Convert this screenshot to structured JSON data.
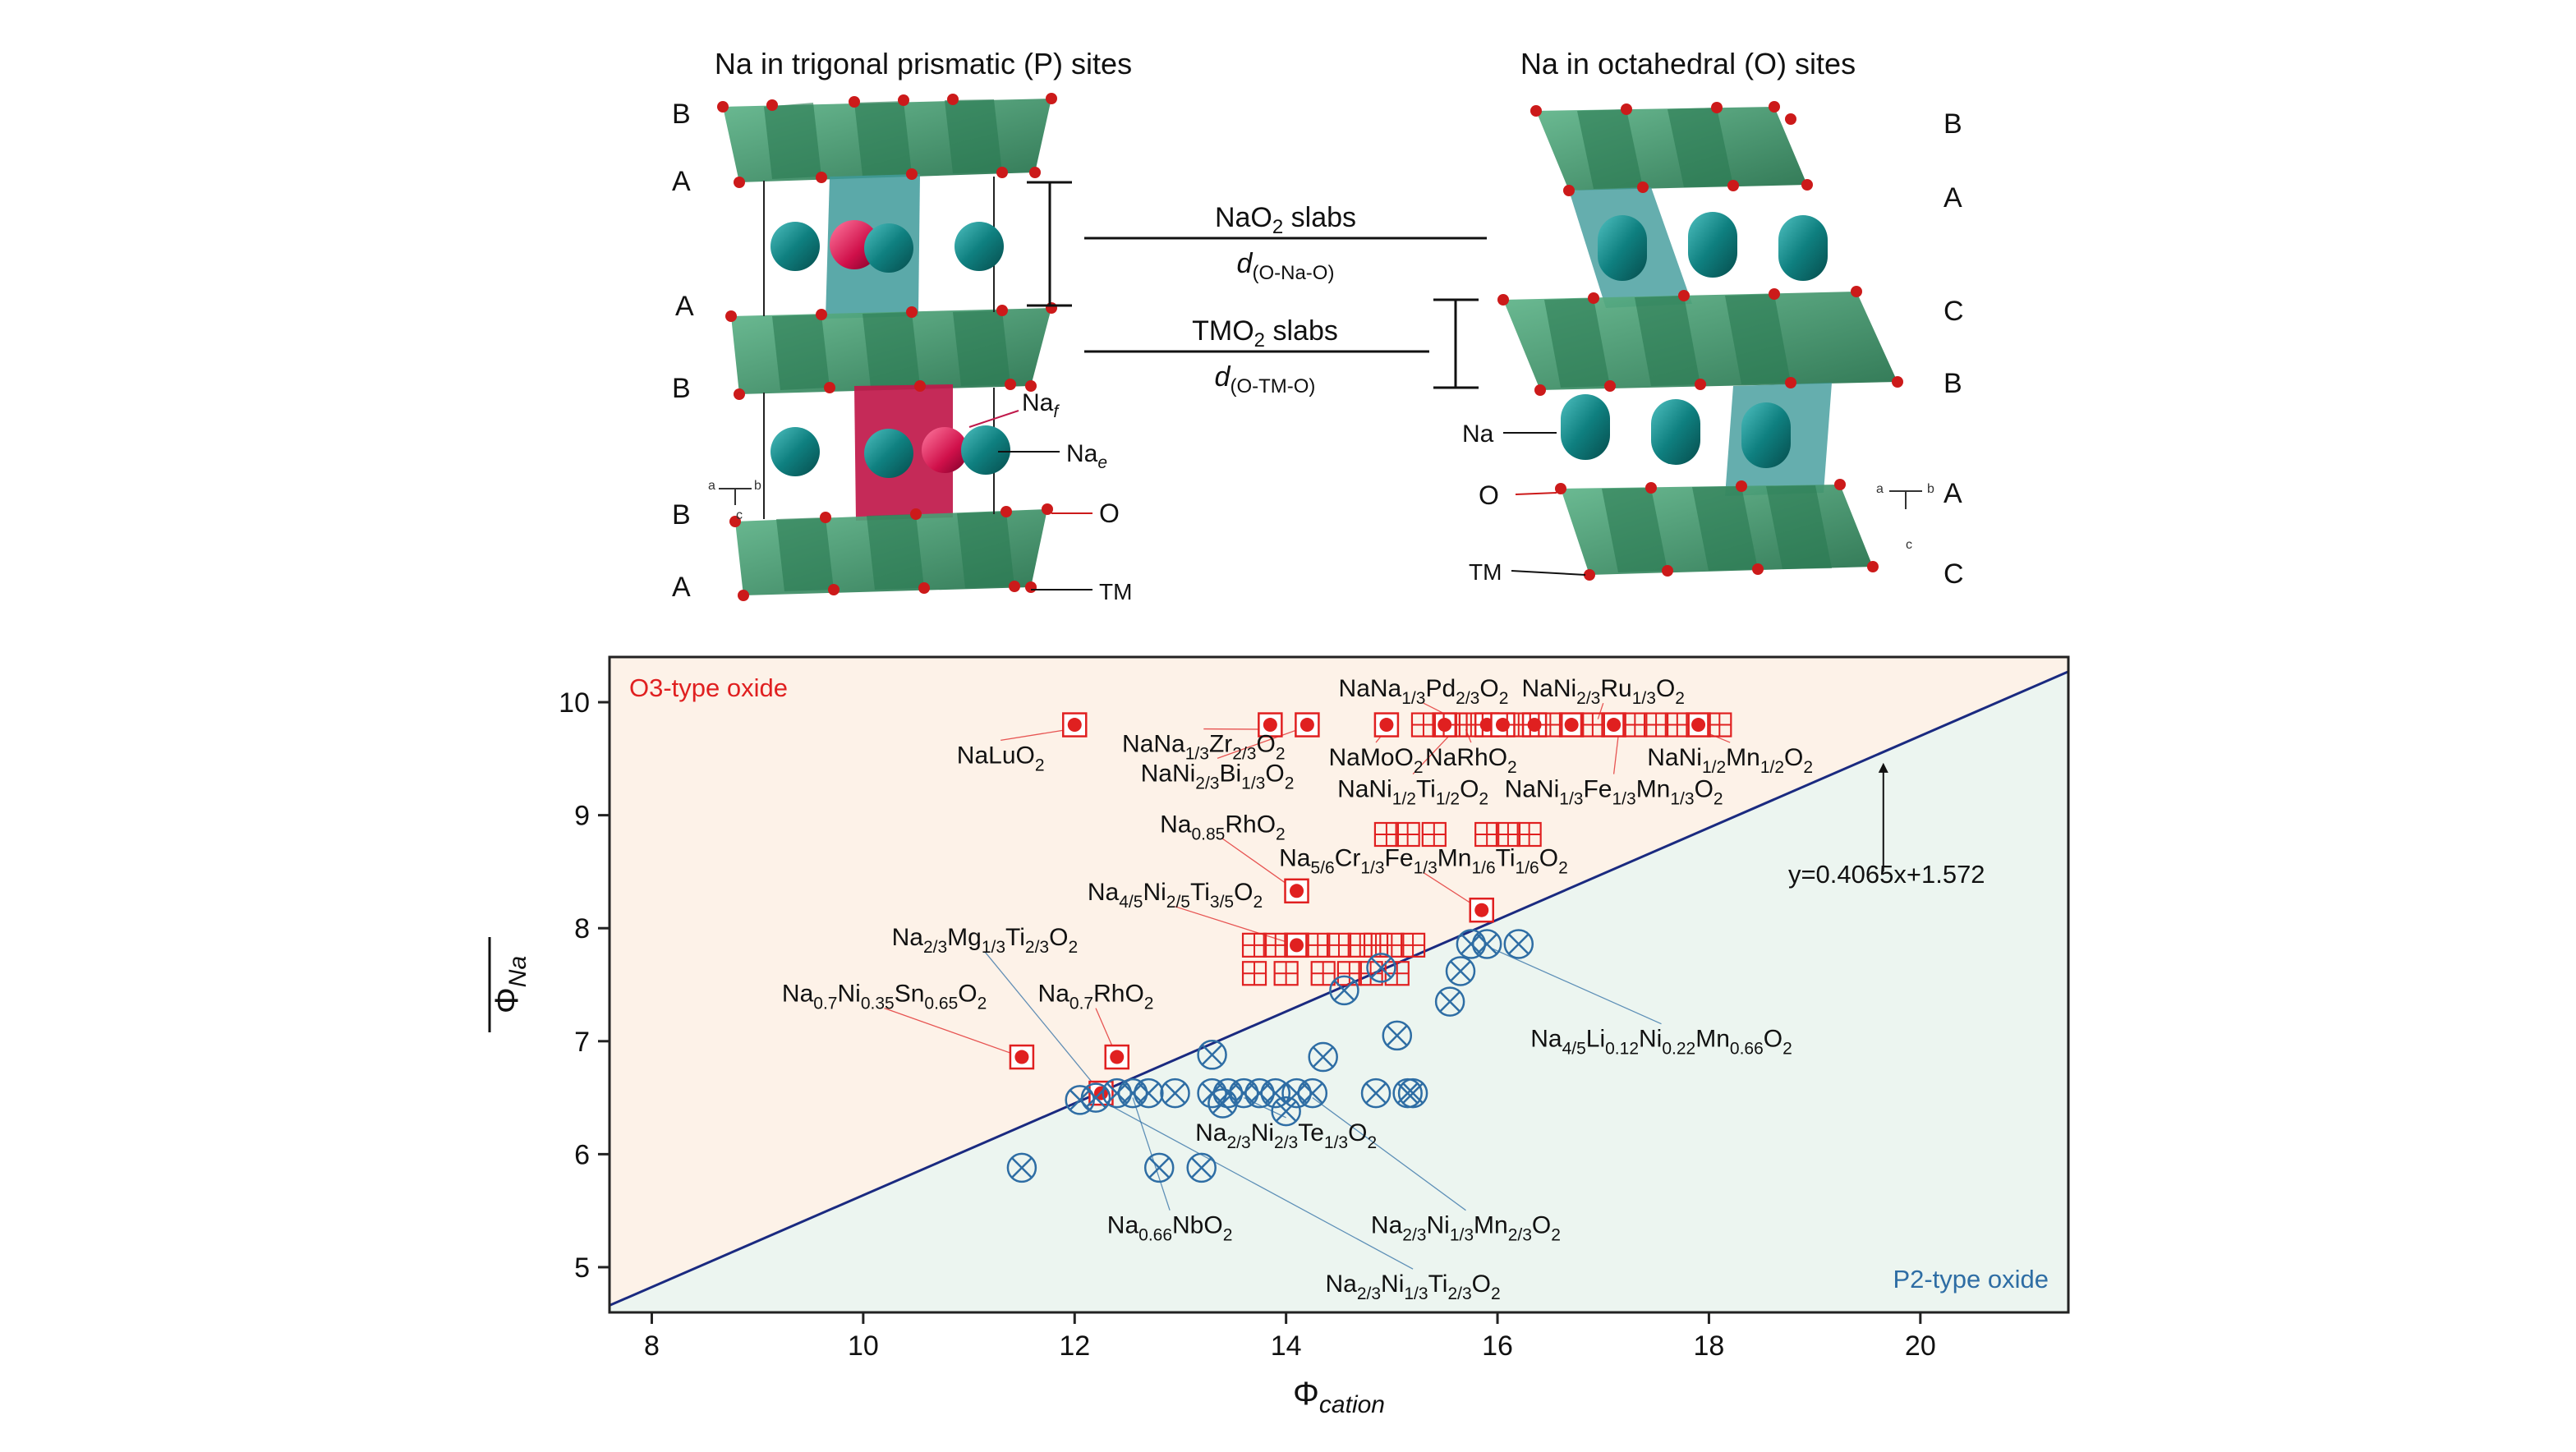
{
  "top": {
    "left_title": "Na in trigonal prismatic (P) sites",
    "right_title": "Na in octahedral (O) sites",
    "left_layers": [
      "B",
      "A",
      "A",
      "B",
      "B",
      "A"
    ],
    "right_layers": [
      "B",
      "A",
      "C",
      "B",
      "A",
      "C"
    ],
    "nao2_slab": "NaO",
    "nao2_slab_sub": "2",
    "nao2_slab_suffix": " slabs",
    "d_ona": "d",
    "d_ona_sub": "(O-Na-O)",
    "tmo2_slab": "TMO",
    "tmo2_slab_sub": "2",
    "tmo2_slab_suffix": " slabs",
    "d_otm": "d",
    "d_otm_sub": "(O-TM-O)",
    "label_naf": "Na",
    "label_naf_sub": "f",
    "label_nae": "Na",
    "label_nae_sub": "e",
    "label_o_left": "O",
    "label_tm_left": "TM",
    "label_na_right": "Na",
    "label_o_right": "O",
    "label_tm_right": "TM",
    "axes_left": {
      "a": "a",
      "b": "b",
      "c": "c"
    },
    "axes_right": {
      "a": "a",
      "b": "b",
      "c": "c"
    }
  },
  "colors": {
    "o3_fill": "#fdf2e8",
    "p2_fill": "#ecf5f0",
    "o3": "#e02020",
    "p2": "#2e6da4",
    "line": "#1a2a80",
    "polyhedra": "#2f8a5e",
    "sodium": "#0f8080",
    "oxygen": "#cc1a1a",
    "prism_p": "#c0184a",
    "prism_o": "#3e9a9a"
  },
  "chart_data": {
    "type": "scatter",
    "xlabel": "Φ",
    "xlabel_sub": "cation",
    "ylabel": "Φ",
    "ylabel_sub": "Na",
    "xlim": [
      7.6,
      21.4
    ],
    "ylim": [
      4.6,
      10.4
    ],
    "xticks": [
      8,
      10,
      12,
      14,
      16,
      18,
      20
    ],
    "yticks": [
      5,
      6,
      7,
      8,
      9,
      10
    ],
    "region_o3": "O3-type oxide",
    "region_p2": "P2-type oxide",
    "fit_label": "y=0.4065x+1.572",
    "fit": {
      "slope": 0.4065,
      "intercept": 1.572
    },
    "series": [
      {
        "name": "O3 (labeled)",
        "marker": "square-dot",
        "points": [
          [
            12.0,
            9.8
          ],
          [
            13.85,
            9.8
          ],
          [
            14.2,
            9.8
          ],
          [
            14.95,
            9.8
          ],
          [
            15.5,
            9.8
          ],
          [
            15.9,
            9.8
          ],
          [
            16.05,
            9.8
          ],
          [
            16.35,
            9.8
          ],
          [
            16.7,
            9.8
          ],
          [
            17.1,
            9.8
          ],
          [
            17.9,
            9.8
          ],
          [
            14.1,
            8.33
          ],
          [
            15.85,
            8.16
          ],
          [
            14.1,
            7.85
          ],
          [
            11.5,
            6.86
          ],
          [
            12.4,
            6.86
          ],
          [
            12.25,
            6.54
          ]
        ]
      },
      {
        "name": "O3",
        "marker": "square-grid",
        "points": [
          [
            15.3,
            9.8
          ],
          [
            15.6,
            9.8
          ],
          [
            15.75,
            9.8
          ],
          [
            16.2,
            9.8
          ],
          [
            16.5,
            9.8
          ],
          [
            16.9,
            9.8
          ],
          [
            17.3,
            9.8
          ],
          [
            17.5,
            9.8
          ],
          [
            17.7,
            9.8
          ],
          [
            18.1,
            9.8
          ],
          [
            14.95,
            8.83
          ],
          [
            15.15,
            8.83
          ],
          [
            15.4,
            8.83
          ],
          [
            15.9,
            8.83
          ],
          [
            16.1,
            8.83
          ],
          [
            16.3,
            8.83
          ],
          [
            13.7,
            7.85
          ],
          [
            13.9,
            7.85
          ],
          [
            14.3,
            7.85
          ],
          [
            14.5,
            7.85
          ],
          [
            14.7,
            7.85
          ],
          [
            14.85,
            7.85
          ],
          [
            15.0,
            7.85
          ],
          [
            15.2,
            7.85
          ],
          [
            13.7,
            7.6
          ],
          [
            14.0,
            7.6
          ],
          [
            14.35,
            7.6
          ],
          [
            14.6,
            7.6
          ],
          [
            14.8,
            7.6
          ],
          [
            15.05,
            7.6
          ]
        ]
      },
      {
        "name": "P2",
        "marker": "circle-x",
        "points": [
          [
            11.5,
            5.88
          ],
          [
            12.05,
            6.48
          ],
          [
            12.2,
            6.5
          ],
          [
            12.4,
            6.54
          ],
          [
            12.55,
            6.54
          ],
          [
            12.7,
            6.54
          ],
          [
            12.8,
            5.88
          ],
          [
            12.95,
            6.54
          ],
          [
            13.2,
            5.88
          ],
          [
            13.3,
            6.88
          ],
          [
            13.3,
            6.54
          ],
          [
            13.45,
            6.54
          ],
          [
            13.6,
            6.54
          ],
          [
            13.75,
            6.54
          ],
          [
            13.9,
            6.54
          ],
          [
            14.0,
            6.38
          ],
          [
            14.1,
            6.54
          ],
          [
            14.25,
            6.54
          ],
          [
            14.35,
            6.86
          ],
          [
            14.55,
            7.45
          ],
          [
            14.85,
            6.54
          ],
          [
            14.9,
            7.65
          ],
          [
            15.05,
            7.05
          ],
          [
            15.15,
            6.54
          ],
          [
            15.2,
            6.54
          ],
          [
            15.55,
            7.35
          ],
          [
            15.65,
            7.62
          ],
          [
            15.75,
            7.86
          ],
          [
            15.9,
            7.86
          ],
          [
            16.2,
            7.86
          ],
          [
            13.4,
            6.45
          ]
        ]
      }
    ],
    "annotations": [
      {
        "parts": [
          [
            "NaLuO",
            ""
          ],
          [
            "2",
            "sub"
          ]
        ],
        "tx": 11.3,
        "ty": 9.46,
        "px": 11.95,
        "py": 9.76
      },
      {
        "parts": [
          [
            "NaNa",
            ""
          ],
          [
            "1/3",
            "sub"
          ],
          [
            "Zr",
            ""
          ],
          [
            "2/3",
            "sub"
          ],
          [
            "O",
            ""
          ],
          [
            "2",
            "sub"
          ]
        ],
        "tx": 13.22,
        "ty": 9.56,
        "px": 13.82,
        "py": 9.76
      },
      {
        "parts": [
          [
            "NaNi",
            ""
          ],
          [
            "2/3",
            "sub"
          ],
          [
            "Bi",
            ""
          ],
          [
            "1/3",
            "sub"
          ],
          [
            "O",
            ""
          ],
          [
            "2",
            "sub"
          ]
        ],
        "tx": 13.35,
        "ty": 9.3,
        "px": 14.12,
        "py": 9.76
      },
      {
        "parts": [
          [
            "NaNa",
            ""
          ],
          [
            "1/3",
            "sub"
          ],
          [
            "Pd",
            ""
          ],
          [
            "2/3",
            "sub"
          ],
          [
            "O",
            ""
          ],
          [
            "2",
            "sub"
          ]
        ],
        "tx": 15.3,
        "ty": 10.05,
        "px": 15.6,
        "py": 9.85
      },
      {
        "parts": [
          [
            "NaNi",
            ""
          ],
          [
            "2/3",
            "sub"
          ],
          [
            "Ru",
            ""
          ],
          [
            "1/3",
            "sub"
          ],
          [
            "O",
            ""
          ],
          [
            "2",
            "sub"
          ]
        ],
        "tx": 17.0,
        "ty": 10.05,
        "px": 16.95,
        "py": 9.85
      },
      {
        "parts": [
          [
            "NaMoO",
            ""
          ],
          [
            "2",
            "sub"
          ]
        ],
        "tx": 14.85,
        "ty": 9.44,
        "px": 14.95,
        "py": 9.76
      },
      {
        "parts": [
          [
            "NaRhO",
            ""
          ],
          [
            "2",
            "sub"
          ]
        ],
        "tx": 15.75,
        "ty": 9.44,
        "px": 15.7,
        "py": 9.76
      },
      {
        "parts": [
          [
            "NaNi",
            ""
          ],
          [
            "1/2",
            "sub"
          ],
          [
            "Mn",
            ""
          ],
          [
            "1/2",
            "sub"
          ],
          [
            "O",
            ""
          ],
          [
            "2",
            "sub"
          ]
        ],
        "tx": 18.2,
        "ty": 9.44,
        "px": 17.9,
        "py": 9.76
      },
      {
        "parts": [
          [
            "NaNi",
            ""
          ],
          [
            "1/2",
            "sub"
          ],
          [
            "Ti",
            ""
          ],
          [
            "1/2",
            "sub"
          ],
          [
            "O",
            ""
          ],
          [
            "2",
            "sub"
          ]
        ],
        "tx": 15.2,
        "ty": 9.16,
        "px": 15.6,
        "py": 9.76
      },
      {
        "parts": [
          [
            "NaNi",
            ""
          ],
          [
            "1/3",
            "sub"
          ],
          [
            "Fe",
            ""
          ],
          [
            "1/3",
            "sub"
          ],
          [
            "Mn",
            ""
          ],
          [
            "1/3",
            "sub"
          ],
          [
            "O",
            ""
          ],
          [
            "2",
            "sub"
          ]
        ],
        "tx": 17.1,
        "ty": 9.16,
        "px": 17.15,
        "py": 9.76
      },
      {
        "parts": [
          [
            "Na",
            ""
          ],
          [
            "0.85",
            "sub"
          ],
          [
            "RhO",
            ""
          ],
          [
            "2",
            "sub"
          ]
        ],
        "tx": 13.4,
        "ty": 8.85,
        "px": 14.1,
        "py": 8.33
      },
      {
        "parts": [
          [
            "Na",
            ""
          ],
          [
            "5/6",
            "sub"
          ],
          [
            "Cr",
            ""
          ],
          [
            "1/3",
            "sub"
          ],
          [
            "Fe",
            ""
          ],
          [
            "1/3",
            "sub"
          ],
          [
            "Mn",
            ""
          ],
          [
            "1/6",
            "sub"
          ],
          [
            "Ti",
            ""
          ],
          [
            "1/6",
            "sub"
          ],
          [
            "O",
            ""
          ],
          [
            "2",
            "sub"
          ]
        ],
        "tx": 15.3,
        "ty": 8.55,
        "px": 15.85,
        "py": 8.16
      },
      {
        "parts": [
          [
            "Na",
            ""
          ],
          [
            "4/5",
            "sub"
          ],
          [
            "Ni",
            ""
          ],
          [
            "2/5",
            "sub"
          ],
          [
            "Ti",
            ""
          ],
          [
            "3/5",
            "sub"
          ],
          [
            "O",
            ""
          ],
          [
            "2",
            "sub"
          ]
        ],
        "tx": 12.95,
        "ty": 8.25,
        "px": 14.1,
        "py": 7.85
      },
      {
        "parts": [
          [
            "Na",
            ""
          ],
          [
            "2/3",
            "sub"
          ],
          [
            "Mg",
            ""
          ],
          [
            "1/3",
            "sub"
          ],
          [
            "Ti",
            ""
          ],
          [
            "2/3",
            "sub"
          ],
          [
            "O",
            ""
          ],
          [
            "2",
            "sub"
          ]
        ],
        "tx": 11.15,
        "ty": 7.85,
        "px": 12.25,
        "py": 6.54
      },
      {
        "parts": [
          [
            "Na",
            ""
          ],
          [
            "0.7",
            "sub"
          ],
          [
            "Ni",
            ""
          ],
          [
            "0.35",
            "sub"
          ],
          [
            "Sn",
            ""
          ],
          [
            "0.65",
            "sub"
          ],
          [
            "O",
            ""
          ],
          [
            "2",
            "sub"
          ]
        ],
        "tx": 10.2,
        "ty": 7.35,
        "px": 11.5,
        "py": 6.86
      },
      {
        "parts": [
          [
            "Na",
            ""
          ],
          [
            "0.7",
            "sub"
          ],
          [
            "RhO",
            ""
          ],
          [
            "2",
            "sub"
          ]
        ],
        "tx": 12.2,
        "ty": 7.35,
        "px": 12.4,
        "py": 6.86
      },
      {
        "parts": [
          [
            "Na",
            ""
          ],
          [
            "4/5",
            "sub"
          ],
          [
            "Li",
            ""
          ],
          [
            "0.12",
            "sub"
          ],
          [
            "Ni",
            ""
          ],
          [
            "0.22",
            "sub"
          ],
          [
            "Mn",
            ""
          ],
          [
            "0.66",
            "sub"
          ],
          [
            "O",
            ""
          ],
          [
            "2",
            "sub"
          ]
        ],
        "tx": 17.55,
        "ty": 6.95,
        "px": 15.95,
        "py": 7.82
      },
      {
        "parts": [
          [
            "Na",
            ""
          ],
          [
            "2/3",
            "sub"
          ],
          [
            "Ni",
            ""
          ],
          [
            "2/3",
            "sub"
          ],
          [
            "Te",
            ""
          ],
          [
            "1/3",
            "sub"
          ],
          [
            "O",
            ""
          ],
          [
            "2",
            "sub"
          ]
        ],
        "tx": 14.0,
        "ty": 6.12,
        "px": 13.6,
        "py": 6.5
      },
      {
        "parts": [
          [
            "Na",
            ""
          ],
          [
            "0.66",
            "sub"
          ],
          [
            "NbO",
            ""
          ],
          [
            "2",
            "sub"
          ]
        ],
        "tx": 12.9,
        "ty": 5.3,
        "px": 12.55,
        "py": 6.5
      },
      {
        "parts": [
          [
            "Na",
            ""
          ],
          [
            "2/3",
            "sub"
          ],
          [
            "Ni",
            ""
          ],
          [
            "1/3",
            "sub"
          ],
          [
            "Mn",
            ""
          ],
          [
            "2/3",
            "sub"
          ],
          [
            "O",
            ""
          ],
          [
            "2",
            "sub"
          ]
        ],
        "tx": 15.7,
        "ty": 5.3,
        "px": 14.25,
        "py": 6.5
      },
      {
        "parts": [
          [
            "Na",
            ""
          ],
          [
            "2/3",
            "sub"
          ],
          [
            "Ni",
            ""
          ],
          [
            "1/3",
            "sub"
          ],
          [
            "Ti",
            ""
          ],
          [
            "2/3",
            "sub"
          ],
          [
            "O",
            ""
          ],
          [
            "2",
            "sub"
          ]
        ],
        "tx": 15.2,
        "ty": 4.78,
        "px": 12.2,
        "py": 6.5
      }
    ]
  }
}
